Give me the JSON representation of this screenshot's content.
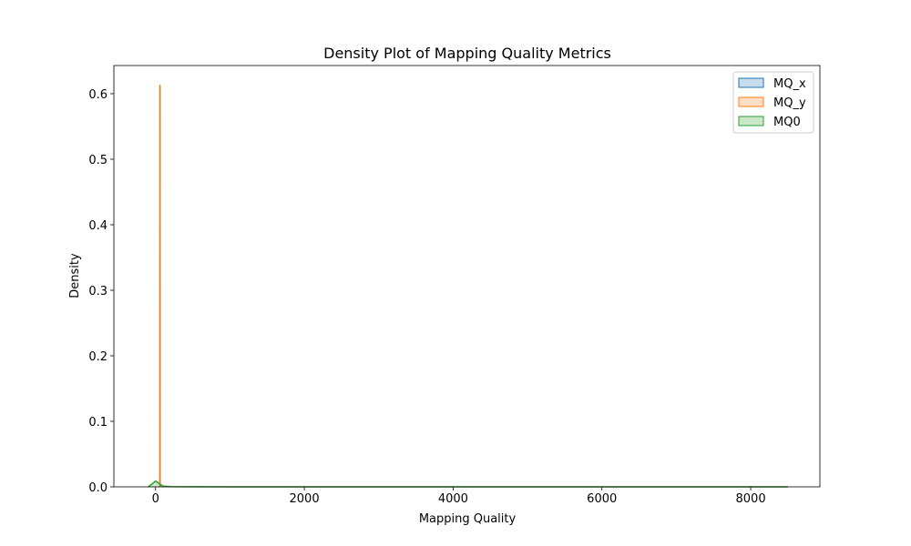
{
  "chart_data": {
    "type": "area",
    "title": "Density Plot of Mapping Quality Metrics",
    "xlabel": "Mapping Quality",
    "ylabel": "Density",
    "xlim": [
      -560,
      8930
    ],
    "ylim": [
      0,
      0.643
    ],
    "x_ticks": [
      0,
      2000,
      4000,
      6000,
      8000
    ],
    "x_tick_labels": [
      "0",
      "2000",
      "4000",
      "6000",
      "8000"
    ],
    "y_ticks": [
      0.0,
      0.1,
      0.2,
      0.3,
      0.4,
      0.5,
      0.6
    ],
    "y_tick_labels": [
      "0.0",
      "0.1",
      "0.2",
      "0.3",
      "0.4",
      "0.5",
      "0.6"
    ],
    "grid": false,
    "legend_position": "top-right",
    "series": [
      {
        "name": "MQ_x",
        "color": "#1f77b4",
        "x": [
          55,
          59,
          60,
          61,
          65
        ],
        "y": [
          0.0,
          0.006,
          0.61,
          0.006,
          0.0
        ]
      },
      {
        "name": "MQ_y",
        "color": "#ff7f0e",
        "x": [
          55,
          59,
          60,
          61,
          65
        ],
        "y": [
          0.0,
          0.006,
          0.613,
          0.006,
          0.0
        ]
      },
      {
        "name": "MQ0",
        "color": "#2ca02c",
        "x": [
          -100,
          -50,
          0,
          50,
          100,
          200,
          500,
          1000,
          3000,
          6000,
          8500
        ],
        "y": [
          0.0,
          0.004,
          0.009,
          0.005,
          0.001,
          0.0003,
          0.0001,
          5e-05,
          2e-05,
          1e-05,
          0.0
        ]
      }
    ]
  }
}
